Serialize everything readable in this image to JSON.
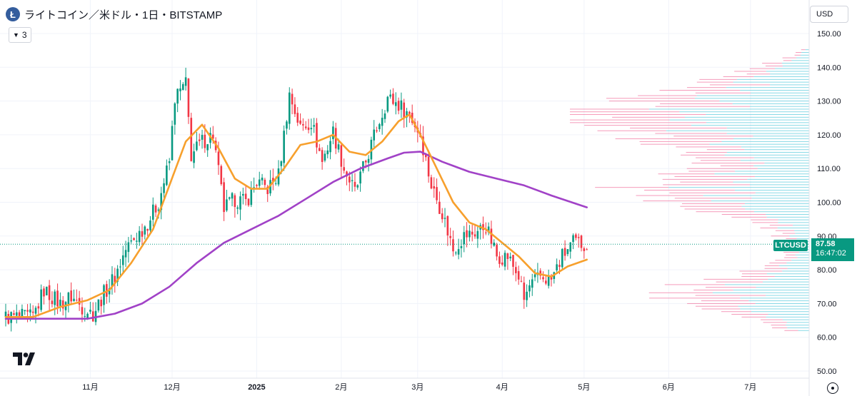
{
  "header": {
    "logo_glyph": "Ł",
    "title": "ライトコイン／米ドル・1日・BITSTAMP",
    "collapse_count": "3",
    "currency": "USD"
  },
  "last_price": {
    "symbol": "LTCUSD",
    "price": "87.58",
    "countdown": "16:47:02"
  },
  "colors": {
    "up": "#089981",
    "down": "#f23645",
    "ma_short": "#f7a02d",
    "ma_long": "#a142c7",
    "vp_up": "#4fc7d9",
    "vp_down": "#f06b9a"
  },
  "chart_data": {
    "type": "candlestick",
    "ylim": [
      50,
      150
    ],
    "yticks": [
      "150.00",
      "140.00",
      "130.00",
      "120.00",
      "110.00",
      "100.00",
      "90.00",
      "80.00",
      "70.00",
      "60.00",
      "50.00"
    ],
    "xticks": [
      {
        "label": "11月",
        "day": 31
      },
      {
        "label": "12月",
        "day": 61
      },
      {
        "label": "2025",
        "day": 92
      },
      {
        "label": "2月",
        "day": 123
      },
      {
        "label": "3月",
        "day": 151
      },
      {
        "label": "4月",
        "day": 182
      },
      {
        "label": "5月",
        "day": 212
      },
      {
        "label": "6月",
        "day": 243
      },
      {
        "label": "7月",
        "day": 273
      }
    ],
    "key_closes": [
      [
        0,
        66
      ],
      [
        10,
        66
      ],
      [
        14,
        74
      ],
      [
        20,
        70
      ],
      [
        24,
        72
      ],
      [
        28,
        69
      ],
      [
        32,
        67
      ],
      [
        36,
        73
      ],
      [
        40,
        78
      ],
      [
        44,
        86
      ],
      [
        48,
        90
      ],
      [
        52,
        94
      ],
      [
        56,
        100
      ],
      [
        60,
        112
      ],
      [
        62,
        131
      ],
      [
        64,
        133
      ],
      [
        66,
        135
      ],
      [
        68,
        114
      ],
      [
        72,
        118
      ],
      [
        76,
        120
      ],
      [
        80,
        98
      ],
      [
        84,
        101
      ],
      [
        88,
        100
      ],
      [
        92,
        106
      ],
      [
        96,
        104
      ],
      [
        100,
        108
      ],
      [
        104,
        132
      ],
      [
        108,
        122
      ],
      [
        112,
        124
      ],
      [
        116,
        112
      ],
      [
        120,
        121
      ],
      [
        124,
        110
      ],
      [
        128,
        103
      ],
      [
        132,
        112
      ],
      [
        136,
        122
      ],
      [
        140,
        131
      ],
      [
        144,
        129
      ],
      [
        148,
        126
      ],
      [
        152,
        120
      ],
      [
        156,
        105
      ],
      [
        160,
        97
      ],
      [
        164,
        86
      ],
      [
        168,
        90
      ],
      [
        172,
        91
      ],
      [
        176,
        93
      ],
      [
        180,
        84
      ],
      [
        184,
        84
      ],
      [
        188,
        78
      ],
      [
        190,
        71
      ],
      [
        192,
        75
      ],
      [
        196,
        78
      ],
      [
        200,
        77
      ],
      [
        204,
        84
      ],
      [
        208,
        88
      ],
      [
        213,
        87.6
      ]
    ],
    "ma_short": [
      [
        0,
        66
      ],
      [
        10,
        66
      ],
      [
        20,
        69
      ],
      [
        30,
        71
      ],
      [
        38,
        74
      ],
      [
        46,
        82
      ],
      [
        54,
        92
      ],
      [
        60,
        105
      ],
      [
        66,
        118
      ],
      [
        72,
        123
      ],
      [
        78,
        116
      ],
      [
        84,
        107
      ],
      [
        90,
        104
      ],
      [
        96,
        104
      ],
      [
        102,
        110
      ],
      [
        108,
        117
      ],
      [
        114,
        118
      ],
      [
        120,
        120
      ],
      [
        126,
        115
      ],
      [
        132,
        114
      ],
      [
        138,
        118
      ],
      [
        144,
        124
      ],
      [
        148,
        126
      ],
      [
        152,
        120
      ],
      [
        158,
        110
      ],
      [
        164,
        100
      ],
      [
        170,
        94
      ],
      [
        176,
        92
      ],
      [
        182,
        88
      ],
      [
        188,
        84
      ],
      [
        194,
        79
      ],
      [
        200,
        78
      ],
      [
        206,
        81
      ],
      [
        213,
        83
      ]
    ],
    "ma_long": [
      [
        0,
        65.5
      ],
      [
        20,
        65.5
      ],
      [
        30,
        65.5
      ],
      [
        40,
        67
      ],
      [
        50,
        70
      ],
      [
        60,
        75
      ],
      [
        70,
        82
      ],
      [
        80,
        88
      ],
      [
        90,
        92
      ],
      [
        100,
        96
      ],
      [
        110,
        101
      ],
      [
        120,
        106
      ],
      [
        130,
        110
      ],
      [
        140,
        113
      ],
      [
        146,
        114.7
      ],
      [
        152,
        115
      ],
      [
        160,
        112
      ],
      [
        170,
        109
      ],
      [
        180,
        107
      ],
      [
        190,
        105
      ],
      [
        200,
        102
      ],
      [
        213,
        98.5
      ]
    ],
    "volume_profile": {
      "price_min": 62,
      "price_max": 146,
      "step": 0.8
    }
  }
}
